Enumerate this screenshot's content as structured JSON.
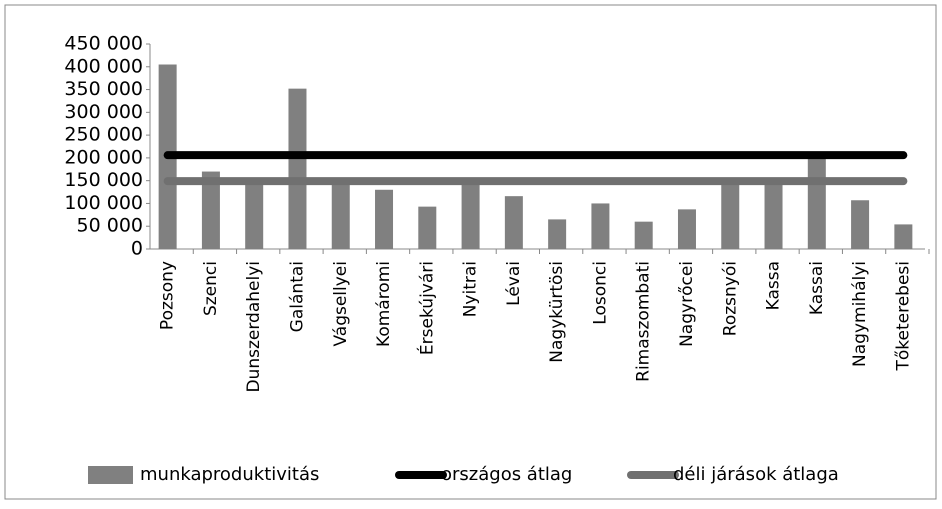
{
  "chart_data": {
    "type": "bar",
    "categories": [
      "Pozsony",
      "Szenci",
      "Dunszerdahelyi",
      "Galántai",
      "Vágsellyei",
      "Komáromi",
      "Érsekújvári",
      "Nyitrai",
      "Lévai",
      "Nagykürtösi",
      "Losonci",
      "Rimaszombati",
      "Nagyrőcei",
      "Rozsnyói",
      "Kassa",
      "Kassai",
      "Nagymihályi",
      "Tőketerebesi"
    ],
    "series": [
      {
        "name": "munkaproduktivitás",
        "mark": "bar",
        "color": "#808080",
        "values": [
          405000,
          170000,
          148000,
          352000,
          145000,
          130000,
          93000,
          142000,
          116000,
          65000,
          100000,
          60000,
          87000,
          148000,
          145000,
          208000,
          107000,
          54000
        ]
      },
      {
        "name": "országos átlag",
        "mark": "line",
        "color": "#000000",
        "values": [
          206000,
          206000,
          206000,
          206000,
          206000,
          206000,
          206000,
          206000,
          206000,
          206000,
          206000,
          206000,
          206000,
          206000,
          206000,
          206000,
          206000,
          206000
        ]
      },
      {
        "name": "déli járások átlaga",
        "mark": "line",
        "color": "#707070",
        "values": [
          149000,
          149000,
          149000,
          149000,
          149000,
          149000,
          149000,
          149000,
          149000,
          149000,
          149000,
          149000,
          149000,
          149000,
          149000,
          149000,
          149000,
          149000
        ]
      }
    ],
    "ylim": [
      0,
      450000
    ],
    "yticks": [
      0,
      {
        "value": 50000,
        "label": "50 000"
      },
      {
        "value": 100000,
        "label": "100 000"
      },
      {
        "value": 150000,
        "label": "150 000"
      },
      {
        "value": 200000,
        "label": "200 000"
      },
      {
        "value": 250000,
        "label": "250 000"
      },
      {
        "value": 300000,
        "label": "300 000"
      },
      {
        "value": 350000,
        "label": "350 000"
      },
      {
        "value": 400000,
        "label": "400 000"
      },
      {
        "value": 450000,
        "label": "450 000"
      }
    ],
    "grid": false,
    "legend": "bottom"
  }
}
